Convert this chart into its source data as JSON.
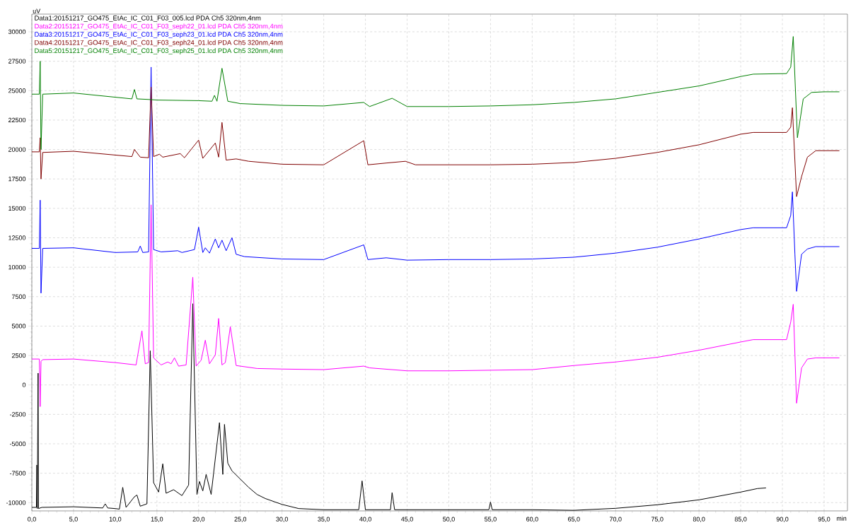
{
  "chart_data": {
    "type": "line",
    "xlabel": "min",
    "ylabel": "uV",
    "xlim": [
      0,
      97.8
    ],
    "ylim": [
      -10700,
      31500
    ],
    "grid": true,
    "legend": "top left",
    "xticks": [
      {
        "value": 0,
        "label": "0,0"
      },
      {
        "value": 5,
        "label": "5,0"
      },
      {
        "value": 10,
        "label": "10,0"
      },
      {
        "value": 15,
        "label": "15,0"
      },
      {
        "value": 20,
        "label": "20,0"
      },
      {
        "value": 25,
        "label": "25,0"
      },
      {
        "value": 30,
        "label": "30,0"
      },
      {
        "value": 35,
        "label": "35,0"
      },
      {
        "value": 40,
        "label": "40,0"
      },
      {
        "value": 45,
        "label": "45,0"
      },
      {
        "value": 50,
        "label": "50,0"
      },
      {
        "value": 55,
        "label": "55,0"
      },
      {
        "value": 60,
        "label": "60,0"
      },
      {
        "value": 65,
        "label": "65,0"
      },
      {
        "value": 70,
        "label": "70,0"
      },
      {
        "value": 75,
        "label": "75,0"
      },
      {
        "value": 80,
        "label": "80,0"
      },
      {
        "value": 85,
        "label": "85,0"
      },
      {
        "value": 90,
        "label": "90,0"
      },
      {
        "value": 95,
        "label": "95,0"
      }
    ],
    "yticks": [
      -10000,
      -7500,
      -5000,
      -2500,
      0,
      2500,
      5000,
      7500,
      10000,
      12500,
      15000,
      17500,
      20000,
      22500,
      25000,
      27500,
      30000
    ],
    "series": [
      {
        "name": "Data1:20151217_GO475_EtAc_IC_C01_F03_005.lcd PDA Ch5 320nm,4nm",
        "color": "#000000",
        "x": [
          0,
          0.55,
          0.6,
          0.65,
          0.75,
          0.8,
          1.2,
          5,
          8.5,
          8.8,
          9.1,
          10,
          10.5,
          10.9,
          11.3,
          12.3,
          12.6,
          13,
          13.8,
          14.2,
          14.6,
          15.2,
          15.7,
          16.1,
          17.0,
          18.0,
          18.8,
          19.3,
          19.8,
          20.1,
          20.5,
          20.9,
          21.5,
          22.5,
          22.9,
          23.1,
          23.5,
          24,
          25,
          26,
          27,
          28,
          30,
          32,
          35,
          39.2,
          39.6,
          40.0,
          43.0,
          43.2,
          43.5,
          50,
          54.8,
          55,
          55.2,
          60,
          65,
          70,
          75,
          80,
          85,
          87,
          88
        ],
        "values": [
          -10400,
          -10400,
          -6800,
          -10500,
          1000,
          -10500,
          -10400,
          -10350,
          -10450,
          -10100,
          -10450,
          -10500,
          -10550,
          -8700,
          -10400,
          -9500,
          -9350,
          -10300,
          -10100,
          2900,
          -8300,
          -9100,
          -6700,
          -9200,
          -8900,
          -9400,
          -8500,
          6900,
          -9300,
          -8200,
          -9000,
          -7600,
          -9300,
          -3200,
          -7600,
          -3350,
          -6650,
          -7300,
          -8000,
          -8700,
          -9300,
          -9650,
          -10150,
          -10500,
          -10600,
          -10600,
          -8150,
          -10600,
          -10600,
          -9150,
          -10600,
          -10600,
          -10600,
          -9950,
          -10600,
          -10600,
          -10650,
          -10480,
          -10180,
          -9760,
          -9100,
          -8800,
          -8750
        ]
      },
      {
        "name": "Data2:20151217_GO475_EtAc_IC_C01_F03_seph22_01.lcd PDA Ch5 320nm,4nm",
        "color": "#ff00ff",
        "x": [
          0,
          0.9,
          1.0,
          1.1,
          1.3,
          5,
          10,
          12.5,
          13.2,
          13.6,
          14.0,
          14.3,
          14.6,
          15.5,
          16.3,
          16.7,
          17.1,
          17.6,
          18.5,
          19.3,
          19.7,
          20.3,
          20.8,
          21.3,
          22,
          22.4,
          22.8,
          23.2,
          23.8,
          24.5,
          27,
          30,
          35,
          39.8,
          40.5,
          45,
          50,
          55,
          60,
          65,
          70,
          75,
          80,
          85,
          86.5,
          90.5,
          91.0,
          91.3,
          91.7,
          92.3,
          93,
          94,
          96.8
        ],
        "values": [
          2200,
          2200,
          -1840,
          2000,
          2150,
          2200,
          1900,
          1700,
          4600,
          1800,
          1900,
          15300,
          2300,
          1700,
          1950,
          1800,
          2300,
          1600,
          1700,
          9150,
          1600,
          2100,
          3800,
          1800,
          2550,
          5650,
          1700,
          1900,
          4950,
          1650,
          1400,
          1350,
          1300,
          1600,
          1450,
          1200,
          1200,
          1250,
          1300,
          1650,
          1950,
          2350,
          2950,
          3650,
          3850,
          3850,
          5350,
          6850,
          -1550,
          1450,
          2200,
          2300,
          2300
        ]
      },
      {
        "name": "Data3:20151217_GO475_EtAc_IC_C01_F03_seph23_01.lcd PDA Ch5 320nm,4nm",
        "color": "#0000ff",
        "x": [
          0,
          0.9,
          1.0,
          1.1,
          1.3,
          5,
          10,
          12.7,
          13,
          13.3,
          14.0,
          14.3,
          14.6,
          15.5,
          17.5,
          18,
          19.5,
          20.0,
          20.5,
          20.8,
          21.3,
          22,
          22.4,
          22.8,
          23.3,
          24.0,
          24.5,
          25.5,
          30,
          35,
          39.8,
          40.3,
          42.5,
          45,
          50,
          55,
          60,
          65,
          70,
          75,
          80,
          85,
          86.5,
          90.5,
          91.0,
          91.2,
          91.5,
          91.7,
          92.3,
          93,
          94,
          96.8
        ],
        "values": [
          11600,
          11600,
          15700,
          7800,
          11600,
          11650,
          11250,
          11300,
          11800,
          11250,
          11300,
          27000,
          11500,
          11300,
          11400,
          11250,
          11500,
          13400,
          11250,
          11650,
          11200,
          12400,
          11650,
          12300,
          11400,
          12500,
          11100,
          10900,
          10700,
          10650,
          11900,
          10650,
          10800,
          10600,
          10650,
          10650,
          10700,
          10850,
          11200,
          11700,
          12400,
          13200,
          13350,
          13350,
          14400,
          16400,
          11100,
          7950,
          11100,
          11550,
          11750,
          11750
        ]
      },
      {
        "name": "Data4:20151217_GO475_EtAc_IC_C01_F03_seph24_01.lcd PDA Ch5 320nm,4nm",
        "color": "#800000",
        "x": [
          0,
          0.9,
          1.0,
          1.1,
          1.3,
          5,
          12,
          12.3,
          13,
          14.0,
          14.3,
          14.6,
          15.3,
          15.7,
          17.8,
          18.3,
          20.0,
          20.5,
          22,
          22.4,
          22.8,
          23.3,
          24.5,
          26,
          30,
          35,
          39.8,
          40.3,
          42.5,
          44.8,
          46,
          50,
          55,
          60,
          65,
          70,
          75,
          80,
          85,
          86.5,
          90.5,
          91.0,
          91.2,
          91.7,
          92.3,
          93,
          94,
          96.8
        ],
        "values": [
          19800,
          19800,
          21000,
          17500,
          19750,
          19850,
          19400,
          20000,
          19350,
          19300,
          25300,
          19400,
          19600,
          19350,
          19650,
          19300,
          20800,
          19250,
          20550,
          19350,
          22300,
          19100,
          19200,
          19000,
          18750,
          18700,
          20750,
          18700,
          18850,
          19000,
          18700,
          18700,
          18700,
          18750,
          18900,
          19250,
          19750,
          20400,
          21300,
          21450,
          21450,
          21900,
          23550,
          16000,
          17700,
          19350,
          19900,
          19900
        ]
      },
      {
        "name": "Data5:20151217_GO475_EtAc_IC_C01_F03_seph25_01.lcd PDA Ch5 320nm,4nm",
        "color": "#008000",
        "x": [
          0,
          0.9,
          1.0,
          1.1,
          1.3,
          5,
          12,
          12.3,
          12.6,
          14,
          15,
          20,
          21.6,
          21.9,
          22.2,
          22.8,
          23.5,
          25,
          30,
          35,
          39.8,
          40.5,
          43.2,
          45,
          50,
          55,
          60,
          65,
          70,
          75,
          80,
          85,
          86.5,
          90.5,
          91.0,
          91.3,
          91.8,
          92.5,
          93.5,
          95,
          96.8
        ],
        "values": [
          24700,
          24700,
          27500,
          20000,
          24700,
          24800,
          24300,
          25100,
          24300,
          24250,
          24200,
          24150,
          24100,
          24600,
          24100,
          26900,
          24100,
          23900,
          23750,
          23700,
          24000,
          23650,
          24350,
          23650,
          23650,
          23700,
          23800,
          24000,
          24300,
          24850,
          25400,
          26200,
          26400,
          26450,
          27000,
          29600,
          21000,
          24300,
          24850,
          24900,
          24900
        ]
      }
    ]
  }
}
